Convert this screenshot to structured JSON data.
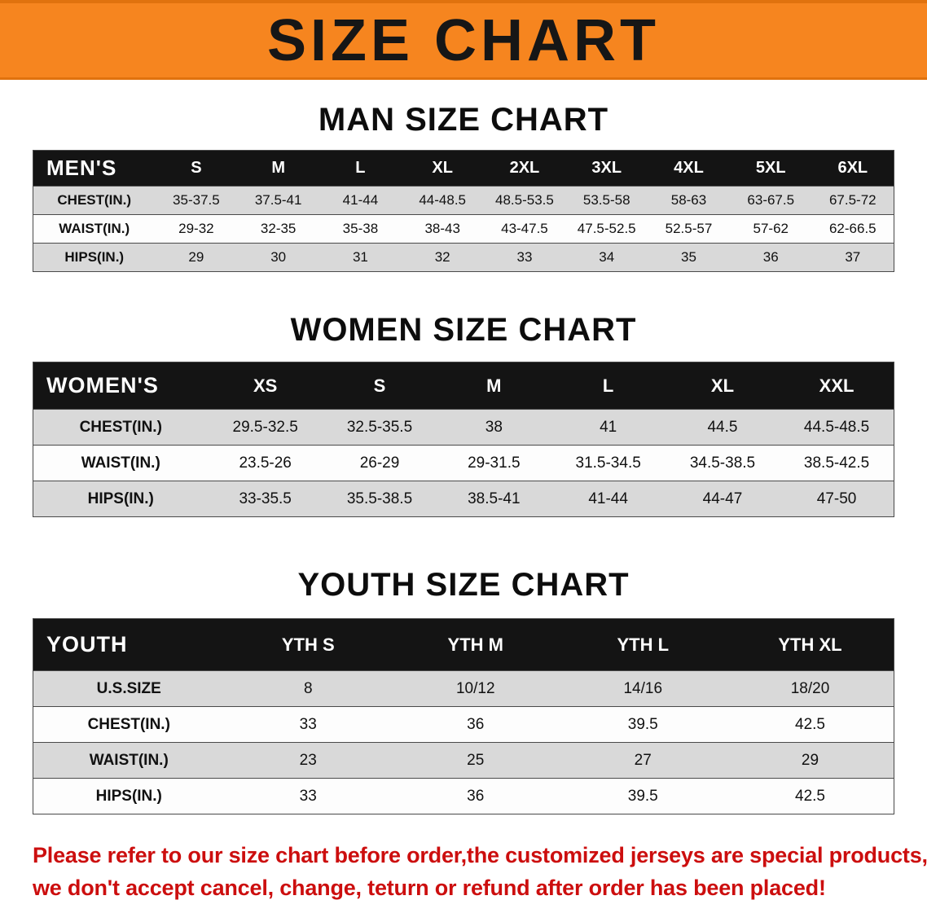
{
  "banner": {
    "title": "SIZE CHART",
    "bg_color": "#F6851F",
    "text_color": "#161616"
  },
  "table_style": {
    "header_bg": "#141414",
    "header_text_color": "#FFFFFF",
    "alt_row_bg": "#D9D9D9"
  },
  "sections": [
    {
      "heading": "MAN SIZE CHART",
      "table": {
        "header": [
          "MEN'S",
          "S",
          "M",
          "L",
          "XL",
          "2XL",
          "3XL",
          "4XL",
          "5XL",
          "6XL"
        ],
        "rows": [
          [
            "CHEST(IN.)",
            "35-37.5",
            "37.5-41",
            "41-44",
            "44-48.5",
            "48.5-53.5",
            "53.5-58",
            "58-63",
            "63-67.5",
            "67.5-72"
          ],
          [
            "WAIST(IN.)",
            "29-32",
            "32-35",
            "35-38",
            "38-43",
            "43-47.5",
            "47.5-52.5",
            "52.5-57",
            "57-62",
            "62-66.5"
          ],
          [
            "HIPS(IN.)",
            "29",
            "30",
            "31",
            "32",
            "33",
            "34",
            "35",
            "36",
            "37"
          ]
        ]
      }
    },
    {
      "heading": "WOMEN SIZE CHART",
      "table": {
        "header": [
          "WOMEN'S",
          "XS",
          "S",
          "M",
          "L",
          "XL",
          "XXL"
        ],
        "rows": [
          [
            "CHEST(IN.)",
            "29.5-32.5",
            "32.5-35.5",
            "38",
            "41",
            "44.5",
            "44.5-48.5"
          ],
          [
            "WAIST(IN.)",
            "23.5-26",
            "26-29",
            "29-31.5",
            "31.5-34.5",
            "34.5-38.5",
            "38.5-42.5"
          ],
          [
            "HIPS(IN.)",
            "33-35.5",
            "35.5-38.5",
            "38.5-41",
            "41-44",
            "44-47",
            "47-50"
          ]
        ]
      }
    },
    {
      "heading": "YOUTH SIZE CHART",
      "table": {
        "header": [
          "YOUTH",
          "YTH S",
          "YTH M",
          "YTH L",
          "YTH XL"
        ],
        "rows": [
          [
            "U.S.SIZE",
            "8",
            "10/12",
            "14/16",
            "18/20"
          ],
          [
            "CHEST(IN.)",
            "33",
            "36",
            "39.5",
            "42.5"
          ],
          [
            "WAIST(IN.)",
            "23",
            "25",
            "27",
            "29"
          ],
          [
            "HIPS(IN.)",
            "33",
            "36",
            "39.5",
            "42.5"
          ]
        ]
      }
    }
  ],
  "footer": {
    "lines": [
      "Please refer to our size chart before order,the customized jerseys are special products,",
      "we don't accept cancel, change, teturn or refund after order has been placed!"
    ],
    "text_color": "#CC0E0E"
  }
}
